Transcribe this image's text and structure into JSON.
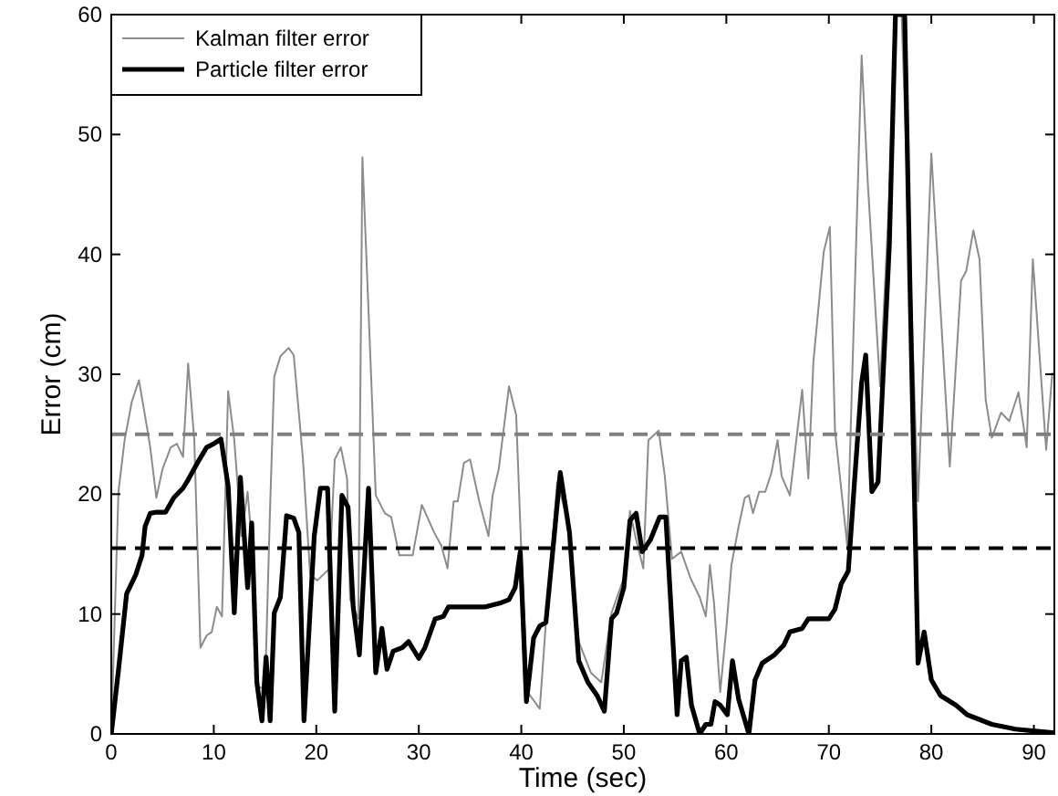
{
  "chart_data": {
    "type": "line",
    "xlabel": "Time (sec)",
    "ylabel": "Error (cm)",
    "xlim": [
      0,
      92
    ],
    "ylim": [
      0,
      60
    ],
    "xticks": [
      0,
      10,
      20,
      30,
      40,
      50,
      60,
      70,
      80,
      90
    ],
    "yticks": [
      0,
      10,
      20,
      30,
      40,
      50,
      60
    ],
    "grid": false,
    "legend": "top left",
    "marker": "none",
    "line_style": "solid",
    "ref_lines": [
      {
        "axis": "y",
        "value": 25,
        "color": "#808080",
        "line_style": "dashed"
      },
      {
        "axis": "y",
        "value": 15.5,
        "color": "#000000",
        "line_style": "dashed"
      }
    ],
    "series": [
      {
        "name": "Kalman filter error",
        "color": "#8c8c8c",
        "x": [
          0,
          0.7,
          1.3,
          2,
          2.7,
          3.5,
          3.8,
          4.4,
          5,
          5.8,
          6.4,
          7,
          7.5,
          8.1,
          8.7,
          9.3,
          9.8,
          10.3,
          10.8,
          11.4,
          12,
          12.7,
          13.3,
          13.8,
          14.2,
          15,
          15.5,
          15.9,
          16.5,
          17.3,
          17.8,
          18.7,
          19.4,
          20.1,
          21.3,
          21.8,
          22.4,
          23,
          23.3,
          24.1,
          24.5,
          25.3,
          25.8,
          26.7,
          27.3,
          28.1,
          29.4,
          30.3,
          31.5,
          32.2,
          32.8,
          33.4,
          33.8,
          34.4,
          35,
          35.9,
          36.8,
          37.2,
          37.8,
          38.8,
          39.5,
          40,
          40.6,
          41.8,
          42.4,
          43.5,
          44.7,
          45.6,
          46.8,
          47.8,
          48.8,
          50,
          50.6,
          51.2,
          51.9,
          52.4,
          53.4,
          54,
          54.7,
          55.6,
          56.5,
          57.4,
          58,
          58.4,
          58.8,
          59.4,
          60,
          60.5,
          61.2,
          61.8,
          62.2,
          62.6,
          63.2,
          63.8,
          64.4,
          65,
          65.4,
          66.2,
          67.4,
          68,
          68.5,
          69.5,
          70.1,
          70.6,
          71.8,
          73.2,
          73.8,
          75,
          75.9,
          76.5,
          77.1,
          78.7,
          80,
          81.8,
          82.9,
          83.4,
          84.1,
          84.7,
          85.3,
          85.9,
          86.8,
          87.6,
          88.5,
          89.3,
          89.9,
          91.2,
          91.8
        ],
        "values": [
          0,
          20.2,
          24.5,
          27.7,
          29.5,
          25.5,
          23.9,
          19.7,
          22.1,
          23.9,
          24.2,
          23.1,
          30.9,
          24.5,
          7.2,
          8.2,
          8.5,
          10.6,
          9.8,
          28.6,
          24.5,
          16.5,
          20.2,
          14.9,
          4,
          3.7,
          19.1,
          29.8,
          31.5,
          32.2,
          31.6,
          22.9,
          13.3,
          12.8,
          13.8,
          22.9,
          23.9,
          21.3,
          11.2,
          9.6,
          48.1,
          30.9,
          19.9,
          18.4,
          18.1,
          14.9,
          14.9,
          19.1,
          16.8,
          15.7,
          13.8,
          19.4,
          19.4,
          22.6,
          22.9,
          19.4,
          16.5,
          19.9,
          22.1,
          29,
          26.6,
          15.2,
          3.5,
          2.1,
          9.3,
          21,
          17.3,
          7.7,
          5.1,
          4.3,
          10.1,
          13,
          18.6,
          16.2,
          13.8,
          24.5,
          25.3,
          21.5,
          14.6,
          15.2,
          13,
          11.4,
          9.8,
          14.1,
          10.9,
          3.5,
          8.8,
          14.1,
          17.3,
          19.7,
          19.9,
          18.4,
          20.2,
          20.2,
          21.8,
          24.5,
          21.5,
          19.9,
          28.7,
          21.3,
          31.1,
          40.2,
          42.3,
          25.3,
          15.7,
          56.6,
          46,
          29,
          44.9,
          60,
          60,
          19.4,
          48.4,
          22.3,
          37.8,
          38.6,
          42,
          39.6,
          27.9,
          24.7,
          26.8,
          26.1,
          28.5,
          23.9,
          39.6,
          23.7,
          30.1
        ]
      },
      {
        "name": "Particle filter error",
        "color": "#000000",
        "x": [
          0,
          0.7,
          1.5,
          2.4,
          3,
          3.3,
          3.8,
          4.4,
          5.3,
          6.1,
          7,
          7.5,
          8.4,
          9.3,
          10,
          10.7,
          11.4,
          12,
          12.6,
          13.3,
          13.7,
          14.2,
          14.7,
          15.1,
          15.5,
          15.9,
          16.5,
          17.1,
          17.8,
          18.3,
          18.8,
          19.8,
          20.4,
          21.1,
          21.8,
          22.5,
          23.1,
          23.6,
          24.2,
          25.1,
          25.8,
          26.4,
          26.9,
          27.5,
          28.4,
          29,
          30,
          30.6,
          31.6,
          32.4,
          32.9,
          34.7,
          36.5,
          37.9,
          38.8,
          39.4,
          39.9,
          40.5,
          41.2,
          41.8,
          42.4,
          43.8,
          44.7,
          45.6,
          46.5,
          47.4,
          48.1,
          48.8,
          49.3,
          50,
          50.6,
          51.2,
          51.8,
          52.6,
          53.5,
          54.1,
          55.2,
          55.6,
          56.1,
          56.6,
          57.4,
          58,
          58.5,
          58.9,
          59.4,
          60.1,
          60.6,
          61.2,
          62.2,
          62.8,
          63.5,
          64.7,
          65.6,
          66.2,
          67.4,
          68,
          70,
          70.6,
          71.2,
          71.9,
          72.5,
          73.2,
          73.6,
          74.2,
          74.8,
          75.9,
          76.5,
          77.4,
          77.9,
          78.7,
          79.3,
          80,
          80.9,
          82.4,
          83.5,
          85.9,
          88.2,
          90.6,
          91.8
        ],
        "values": [
          0,
          5.3,
          11.7,
          13.3,
          14.9,
          17.3,
          18.4,
          18.5,
          18.5,
          19.7,
          20.5,
          21.2,
          22.6,
          23.9,
          24.2,
          24.6,
          20.7,
          10.1,
          21.4,
          12.2,
          17.6,
          4.3,
          1.1,
          6.4,
          1.1,
          10.1,
          11.4,
          18.2,
          18,
          16.8,
          1.1,
          16.5,
          20.5,
          20.5,
          1.9,
          19.9,
          18.9,
          10.6,
          6.6,
          20.5,
          5.1,
          8.8,
          5.4,
          6.9,
          7.2,
          7.7,
          6.3,
          7.2,
          9.6,
          9.8,
          10.6,
          10.6,
          10.6,
          10.9,
          11.2,
          12.2,
          15.2,
          2.7,
          8,
          9,
          9.3,
          21.8,
          16.8,
          6.1,
          4.3,
          3.2,
          1.9,
          9.6,
          10.1,
          12.2,
          17.8,
          18.4,
          15.2,
          16.2,
          18.1,
          18.1,
          1.6,
          6.1,
          6.4,
          2.4,
          0,
          0.8,
          0.8,
          2.7,
          2.4,
          1.6,
          6.1,
          2.9,
          0,
          4.5,
          5.9,
          6.6,
          7.4,
          8.5,
          8.8,
          9.6,
          9.6,
          10.4,
          12.5,
          13.6,
          21,
          29.3,
          31.6,
          20.2,
          21,
          40.7,
          60,
          60,
          38,
          5.9,
          8.5,
          4.5,
          3.2,
          2.4,
          1.6,
          0.8,
          0.4,
          0.2,
          0.1
        ]
      }
    ]
  }
}
